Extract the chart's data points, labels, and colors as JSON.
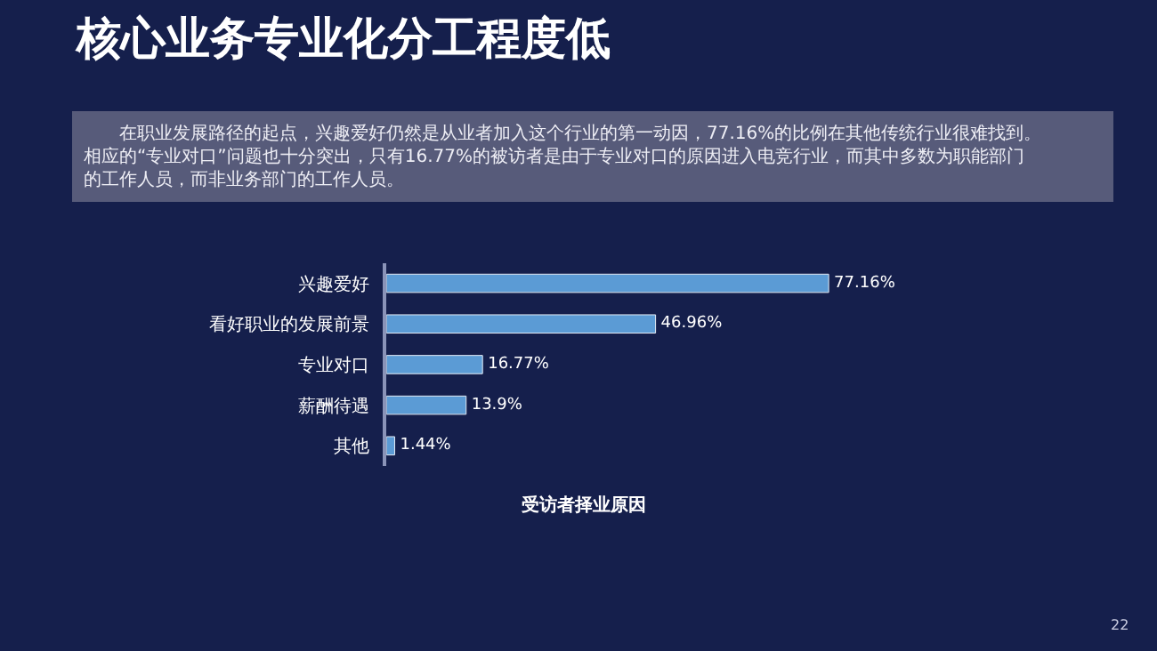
{
  "chart_data": {
    "type": "bar",
    "orientation": "horizontal",
    "title": "核心业务专业化分工程度低",
    "subtitle": "　　在职业发展路径的起点，兴趣爱好仍然是从业者加入这个行业的第一动因，77.16%的比例在其他传统行业很难找到。相应的“专业对口”问题也十分突出，只有16.77%的被访者是由于专业对口的原因进入电竞行业，而其中多数为职能部门的工作人员，而非业务部门的工作人员。",
    "xlabel": "受访者择业原因",
    "categories": [
      "兴趣爱好",
      "看好职业的发展前景",
      "专业对口",
      "薪酬待遇",
      "其他"
    ],
    "values": [
      77.16,
      46.96,
      16.77,
      13.9,
      1.44
    ],
    "value_labels": [
      "77.16%",
      "46.96%",
      "16.77%",
      "13.9%",
      "1.44%"
    ],
    "color": "#5b9bd5",
    "annotations": [
      "22"
    ]
  }
}
